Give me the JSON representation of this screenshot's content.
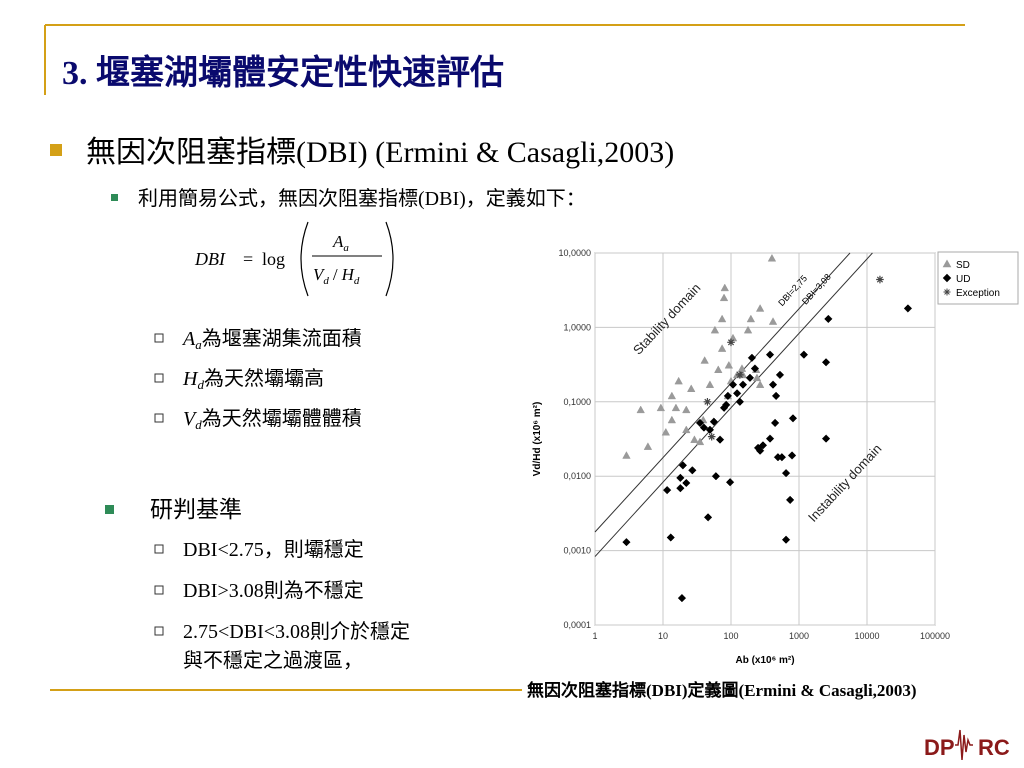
{
  "slide": {
    "title": "3. 堰塞湖壩體安定性快速評估",
    "bullet1": "無因次阻塞指標(DBI) (Ermini & Casagli,2003)",
    "bullet1_sub": "利用簡易公式，無因次阻塞指標(DBI)，定義如下：",
    "formula": {
      "lhs": "DBI",
      "op": "=",
      "fn": "log",
      "num": "A",
      "num_sub": "a",
      "den_v": "V",
      "den_v_sub": "d",
      "slash": "/",
      "den_h": "H",
      "den_h_sub": "d"
    },
    "definitions": [
      {
        "sym": "A",
        "sub": "a",
        "text": "為堰塞湖集流面積"
      },
      {
        "sym": "H",
        "sub": "d",
        "text": "為天然壩壩高"
      },
      {
        "sym": "V",
        "sub": "d",
        "text": "為天然壩壩體體積"
      }
    ],
    "bullet2": "研判基準",
    "criteria": [
      "DBI<2.75，則壩穩定",
      "DBI>3.08則為不穩定",
      "2.75<DBI<3.08則介於穩定",
      "與不穩定之過渡區，"
    ],
    "caption": "無因次阻塞指標(DBI)定義圖(Ermini & Casagli,2003)",
    "logo_left": "DP",
    "logo_right": "RC"
  },
  "chart_data": {
    "type": "scatter",
    "xlabel": "Ab (x10⁶ m²)",
    "ylabel": "Vd/Hd (x10⁶ m²)",
    "xlog": true,
    "ylog": true,
    "grid": true,
    "legend": "top-right",
    "xlim": [
      1,
      100000
    ],
    "xticks": [
      1,
      10,
      100,
      1000,
      10000,
      100000
    ],
    "ylim": [
      0.0001,
      10
    ],
    "yticks": [
      {
        "value": 0.0001,
        "label": "0,0001"
      },
      {
        "value": 0.001,
        "label": "0,0010"
      },
      {
        "value": 0.01,
        "label": "0,0100"
      },
      {
        "value": 0.1,
        "label": "0,1000"
      },
      {
        "value": 1,
        "label": "1,0000"
      },
      {
        "value": 10,
        "label": "10,0000"
      }
    ],
    "reference_lines": [
      {
        "value": 2.75,
        "label": "DBI=2,75"
      },
      {
        "value": 3.08,
        "label": "DBI=3,08"
      }
    ],
    "annotations": [
      "Stability domain",
      "Instability domain"
    ],
    "series": [
      {
        "name": "SD",
        "color": "#9a9a9a",
        "marker": "triangle",
        "x": [
          2.9,
          4.7,
          6.0,
          9.3,
          11,
          13.5,
          15.5,
          13.5,
          17,
          22,
          22,
          26,
          29,
          35,
          41,
          39,
          49,
          58,
          65,
          74,
          74,
          79,
          81,
          90,
          93,
          100,
          107,
          123,
          145,
          150,
          178,
          196,
          234,
          241,
          268,
          268,
          400,
          415
        ],
        "values": [
          0.019,
          0.078,
          0.025,
          0.083,
          0.039,
          0.12,
          0.083,
          0.057,
          0.19,
          0.078,
          0.042,
          0.15,
          0.031,
          0.029,
          0.36,
          0.057,
          0.17,
          0.92,
          0.27,
          0.52,
          1.3,
          2.5,
          3.4,
          0.12,
          0.31,
          0.19,
          0.72,
          0.23,
          0.28,
          0.23,
          0.92,
          1.3,
          0.27,
          0.21,
          1.8,
          0.17,
          8.5,
          1.2
        ]
      },
      {
        "name": "UD",
        "color": "#000000",
        "marker": "diamond",
        "x": [
          2.9,
          11.5,
          13,
          18,
          18,
          19,
          19.6,
          22,
          27,
          35,
          40,
          46,
          49,
          56,
          60,
          69,
          79,
          85,
          90,
          97,
          107,
          123,
          135,
          150,
          190,
          203,
          225,
          250,
          268,
          295,
          375,
          375,
          415,
          445,
          460,
          490,
          525,
          560,
          645,
          645,
          740,
          790,
          815,
          1180,
          2500,
          2500,
          2700,
          40000
        ],
        "values": [
          0.0013,
          0.0065,
          0.0015,
          0.0095,
          0.0069,
          0.00023,
          0.014,
          0.0081,
          0.012,
          0.052,
          0.045,
          0.0028,
          0.042,
          0.054,
          0.01,
          0.031,
          0.083,
          0.091,
          0.12,
          0.0083,
          0.17,
          0.13,
          0.1,
          0.17,
          0.21,
          0.39,
          0.28,
          0.024,
          0.022,
          0.026,
          0.032,
          0.43,
          0.17,
          0.052,
          0.12,
          0.018,
          0.23,
          0.018,
          0.0014,
          0.011,
          0.0048,
          0.019,
          0.06,
          0.43,
          0.032,
          0.34,
          1.3,
          1.8
        ]
      },
      {
        "name": "Exception",
        "color": "#444444",
        "marker": "asterisk",
        "x": [
          100,
          45,
          52,
          135,
          15500
        ],
        "values": [
          0.63,
          0.1,
          0.034,
          0.23,
          4.4
        ]
      }
    ]
  }
}
